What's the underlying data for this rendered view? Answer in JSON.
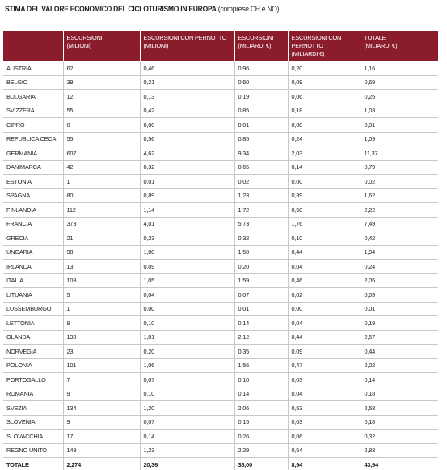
{
  "title": {
    "main": "STIMA DEL VALORE ECONOMICO DEL CICLOTURISMO IN EUROPA",
    "sub": "(comprese CH e NO)"
  },
  "table": {
    "headers": [
      [
        "",
        ""
      ],
      [
        "ESCURSIONI",
        "(MILIONI)"
      ],
      [
        "ESCURSIONI CON PERNOTTO",
        "(MILIONI)"
      ],
      [
        "ESCURSIONI",
        "(MILIARDI €)"
      ],
      [
        "ESCURSIONI CON PERNOTTO",
        "(MILIARDI €)"
      ],
      [
        "TOTALE",
        "(MILIARDI €)"
      ]
    ],
    "rows": [
      [
        "AUSTRIA",
        "62",
        "0,46",
        "0,96",
        "0,20",
        "1,16"
      ],
      [
        "BELGIO",
        "39",
        "0,21",
        "0,60",
        "0,09",
        "0,69"
      ],
      [
        "BULGARIA",
        "12",
        "0,13",
        "0,19",
        "0,06",
        "0,25"
      ],
      [
        "SVIZZERA",
        "55",
        "0,42",
        "0,85",
        "0,18",
        "1,03"
      ],
      [
        "CIPRO",
        "0",
        "0,00",
        "0,01",
        "0,00",
        "0,01"
      ],
      [
        "REPUBLICA CECA",
        "55",
        "0,56",
        "0,85",
        "0,24",
        "1,09"
      ],
      [
        "GERMANIA",
        "607",
        "4,62",
        "9,34",
        "2,03",
        "11,37"
      ],
      [
        "DANIMARCA",
        "42",
        "0,32",
        "0,65",
        "0,14",
        "0,79"
      ],
      [
        "ESTONIA",
        "1",
        "0,01",
        "0,02",
        "0,00",
        "0,02"
      ],
      [
        "SPAGNA",
        "80",
        "0,89",
        "1,23",
        "0,39",
        "1,62"
      ],
      [
        "FINLANDIA",
        "112",
        "1,14",
        "1,72",
        "0,50",
        "2,22"
      ],
      [
        "FRANCIA",
        "373",
        "4,01",
        "5,73",
        "1,76",
        "7,49"
      ],
      [
        "GRECIA",
        "21",
        "0,23",
        "0,32",
        "0,10",
        "0,42"
      ],
      [
        "UNGARIA",
        "98",
        "1,00",
        "1,50",
        "0,44",
        "1,94"
      ],
      [
        "IRLANDA",
        "13",
        "0,09",
        "0,20",
        "0,04",
        "0,24"
      ],
      [
        "ITALIA",
        "103",
        "1,05",
        "1,59",
        "0,46",
        "2,05"
      ],
      [
        "LITUANIA",
        "5",
        "0,04",
        "0,07",
        "0,02",
        "0,09"
      ],
      [
        "LUSSEMBURGO",
        "1",
        "0,00",
        "0,01",
        "0,00",
        "0,01"
      ],
      [
        "LETTONIA",
        "9",
        "0,10",
        "0,14",
        "0,04",
        "0,19"
      ],
      [
        "OLANDA",
        "138",
        "1,01",
        "2,12",
        "0,44",
        "2,57"
      ],
      [
        "NORVEGIA",
        "23",
        "0,20",
        "0,35",
        "0,09",
        "0,44"
      ],
      [
        "POLONIA",
        "101",
        "1,06",
        "1,56",
        "0,47",
        "2,02"
      ],
      [
        "PORTOGALLO",
        "7",
        "0,07",
        "0,10",
        "0,03",
        "0,14"
      ],
      [
        "ROMANIA",
        "9",
        "0,10",
        "0,14",
        "0,04",
        "0,18"
      ],
      [
        "SVEZIA",
        "134",
        "1,20",
        "2,06",
        "0,53",
        "2,58"
      ],
      [
        "SLOVENIA",
        "9",
        "0,07",
        "0,15",
        "0,03",
        "0,18"
      ],
      [
        "SLOVACCHIA",
        "17",
        "0,14",
        "0,26",
        "0,06",
        "0,32"
      ],
      [
        "REGNO UNITO",
        "149",
        "1,23",
        "2,29",
        "0,54",
        "2,83"
      ]
    ],
    "total": [
      "TOTALE",
      "2.274",
      "20,36",
      "35,00",
      "8,94",
      "43,94"
    ]
  }
}
